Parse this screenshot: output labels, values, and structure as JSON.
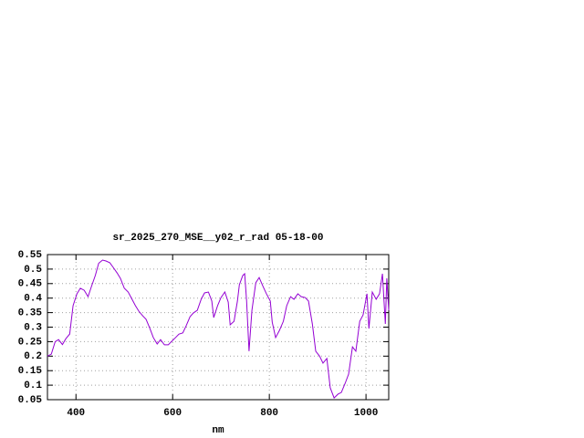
{
  "chart_data": {
    "type": "line",
    "title": "sr_2025_270_MSE__y02_r_rad 05-18-00",
    "x_label": "nm",
    "x": [
      341,
      349,
      357,
      364,
      372,
      379,
      387,
      394,
      402,
      409,
      417,
      425,
      432,
      440,
      447,
      455,
      462,
      470,
      477,
      485,
      492,
      500,
      508,
      515,
      523,
      530,
      538,
      545,
      553,
      560,
      568,
      575,
      583,
      591,
      598,
      606,
      613,
      621,
      628,
      636,
      643,
      651,
      659,
      666,
      674,
      681,
      685,
      693,
      700,
      708,
      715,
      719,
      727,
      734,
      738,
      745,
      749,
      753,
      758,
      764,
      772,
      779,
      787,
      794,
      802,
      806,
      813,
      821,
      829,
      836,
      844,
      851,
      859,
      866,
      874,
      881,
      889,
      896,
      904,
      911,
      919,
      926,
      934,
      942,
      949,
      957,
      964,
      972,
      979,
      987,
      994,
      1002,
      1006,
      1013,
      1021,
      1028,
      1034,
      1040,
      1043,
      1047
    ],
    "series": [
      {
        "name": "sr_2025_270_MSE__y02_r_rad",
        "color": "#9400d3",
        "values": [
          0.2,
          0.207,
          0.25,
          0.257,
          0.24,
          0.26,
          0.276,
          0.374,
          0.415,
          0.434,
          0.427,
          0.405,
          0.44,
          0.478,
          0.52,
          0.531,
          0.528,
          0.522,
          0.506,
          0.487,
          0.468,
          0.434,
          0.421,
          0.399,
          0.374,
          0.355,
          0.339,
          0.327,
          0.295,
          0.264,
          0.242,
          0.257,
          0.239,
          0.239,
          0.251,
          0.264,
          0.276,
          0.28,
          0.305,
          0.336,
          0.349,
          0.358,
          0.396,
          0.418,
          0.421,
          0.39,
          0.333,
          0.374,
          0.402,
          0.421,
          0.386,
          0.308,
          0.32,
          0.39,
          0.446,
          0.478,
          0.484,
          0.39,
          0.217,
          0.358,
          0.453,
          0.471,
          0.44,
          0.415,
          0.39,
          0.317,
          0.264,
          0.289,
          0.32,
          0.374,
          0.405,
          0.396,
          0.415,
          0.405,
          0.402,
          0.39,
          0.311,
          0.217,
          0.2,
          0.176,
          0.192,
          0.091,
          0.056,
          0.069,
          0.075,
          0.107,
          0.138,
          0.232,
          0.217,
          0.32,
          0.342,
          0.415,
          0.295,
          0.421,
          0.396,
          0.415,
          0.484,
          0.311,
          0.468,
          0.358
        ]
      }
    ],
    "xlim": [
      341,
      1047
    ],
    "xticks": [
      400,
      600,
      800,
      1000
    ],
    "ylim": [
      0.05,
      0.55
    ],
    "yticks": [
      0.05,
      0.1,
      0.15,
      0.2,
      0.25,
      0.3,
      0.35,
      0.4,
      0.45,
      0.5,
      0.55
    ],
    "grid": true
  }
}
